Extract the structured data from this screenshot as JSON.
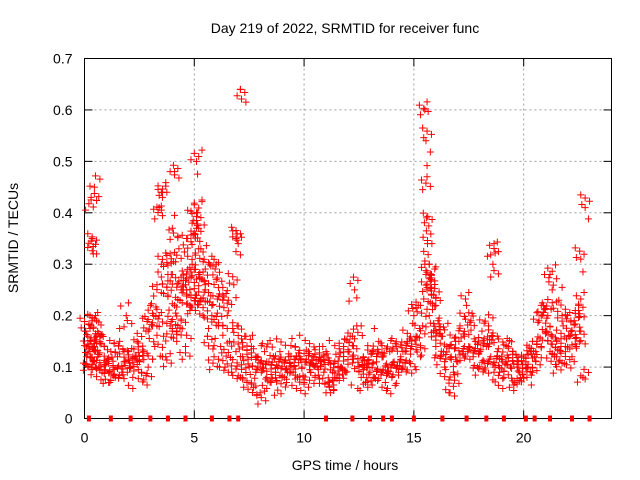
{
  "chart_data": {
    "type": "scatter",
    "title": "Day 219 of 2022, SRMTID for receiver func",
    "xlabel": "GPS time / hours",
    "ylabel": "SRMTID / TECUs",
    "xlim": [
      0,
      24
    ],
    "ylim": [
      0,
      0.7
    ],
    "xticks": [
      0,
      5,
      10,
      15,
      20
    ],
    "xtick_labels": [
      "0",
      "5",
      "10",
      "15",
      "20"
    ],
    "yticks": [
      0,
      0.1,
      0.2,
      0.3,
      0.4,
      0.5,
      0.6,
      0.7
    ],
    "ytick_labels": [
      "0",
      "0.1",
      "0.2",
      "0.3",
      "0.4",
      "0.5",
      "0.6",
      "0.7"
    ],
    "grid": true,
    "marker": "plus",
    "color": "#ff0000",
    "series": [
      {
        "name": "SRMTID",
        "x": [
          0.05,
          0.1,
          0.15,
          0.2,
          0.25,
          0.3,
          0.35,
          0.4,
          0.45,
          0.5,
          0.55,
          0.6,
          0.65,
          0.7,
          0.8,
          0.9,
          1.0,
          1.1,
          1.2,
          1.3,
          1.4,
          1.5,
          1.6,
          1.7,
          1.8,
          1.9,
          2.0,
          2.1,
          2.2,
          2.3,
          2.4,
          2.5,
          2.6,
          2.7,
          2.8,
          2.9,
          3.0,
          3.1,
          3.2,
          3.3,
          3.4,
          3.5,
          3.6,
          3.7,
          3.8,
          3.9,
          4.0,
          4.1,
          4.2,
          4.3,
          4.4,
          4.5,
          4.6,
          4.7,
          4.8,
          4.9,
          5.0,
          5.05,
          5.1,
          5.2,
          5.3,
          5.4,
          5.5,
          5.6,
          5.7,
          5.8,
          5.9,
          6.0,
          6.1,
          6.2,
          6.3,
          6.4,
          6.5,
          6.6,
          6.7,
          6.8,
          6.9,
          7.0,
          7.1,
          7.2,
          7.3,
          7.4,
          7.5,
          7.6,
          7.7,
          7.8,
          7.9,
          8.0,
          8.1,
          8.2,
          8.3,
          8.4,
          8.5,
          8.6,
          8.7,
          8.8,
          8.9,
          9.0,
          9.1,
          9.2,
          9.3,
          9.4,
          9.5,
          9.6,
          9.7,
          9.8,
          9.9,
          10.0,
          10.1,
          10.2,
          10.3,
          10.4,
          10.5,
          10.6,
          10.7,
          10.8,
          10.9,
          11.0,
          11.1,
          11.2,
          11.3,
          11.4,
          11.5,
          11.6,
          11.7,
          11.8,
          11.9,
          12.0,
          12.1,
          12.2,
          12.3,
          12.4,
          12.5,
          12.6,
          12.7,
          12.8,
          12.9,
          13.0,
          13.1,
          13.2,
          13.3,
          13.4,
          13.5,
          13.6,
          13.7,
          13.8,
          13.9,
          14.0,
          14.1,
          14.2,
          14.3,
          14.4,
          14.5,
          14.6,
          14.7,
          14.8,
          14.9,
          15.0,
          15.1,
          15.2,
          15.3,
          15.4,
          15.5,
          15.6,
          15.7,
          15.8,
          15.9,
          16.0,
          16.1,
          16.2,
          16.3,
          16.4,
          16.5,
          16.6,
          16.7,
          16.8,
          16.9,
          17.0,
          17.1,
          17.2,
          17.3,
          17.4,
          17.5,
          17.6,
          17.7,
          17.8,
          17.9,
          18.0,
          18.1,
          18.2,
          18.3,
          18.4,
          18.5,
          18.6,
          18.7,
          18.8,
          18.9,
          19.0,
          19.1,
          19.2,
          19.3,
          19.4,
          19.5,
          19.6,
          19.7,
          19.8,
          19.9,
          20.0,
          20.1,
          20.2,
          20.3,
          20.4,
          20.5,
          20.6,
          20.7,
          20.8,
          20.9,
          21.0,
          21.1,
          21.2,
          21.3,
          21.4,
          21.5,
          21.6,
          21.7,
          21.8,
          21.9,
          22.0,
          22.1,
          22.2,
          22.3,
          22.4,
          22.5,
          22.6,
          22.7,
          22.8,
          0.3,
          0.35,
          0.4,
          0.45,
          3.4,
          3.5,
          3.55,
          4.0,
          4.1,
          5.1,
          5.15,
          5.2,
          6.9,
          7.0,
          7.1,
          15.5,
          15.55,
          15.6,
          15.58,
          15.62,
          18.6,
          18.65,
          21.2,
          21.3,
          21.6,
          22.5,
          22.6,
          4.6,
          4.7,
          4.8,
          4.9,
          5.0,
          5.3,
          5.5,
          5.8,
          6.0,
          6.3,
          3.8,
          3.9,
          4.2,
          4.4,
          15.8,
          15.9,
          16.0,
          15.7
        ],
        "y": [
          0.17,
          0.12,
          0.16,
          0.1,
          0.13,
          0.15,
          0.19,
          0.11,
          0.14,
          0.2,
          0.16,
          0.12,
          0.1,
          0.15,
          0.09,
          0.14,
          0.11,
          0.07,
          0.13,
          0.1,
          0.08,
          0.12,
          0.15,
          0.09,
          0.11,
          0.2,
          0.13,
          0.1,
          0.08,
          0.12,
          0.15,
          0.11,
          0.09,
          0.13,
          0.17,
          0.1,
          0.22,
          0.18,
          0.14,
          0.26,
          0.2,
          0.3,
          0.16,
          0.12,
          0.24,
          0.18,
          0.28,
          0.22,
          0.15,
          0.33,
          0.19,
          0.25,
          0.14,
          0.29,
          0.21,
          0.3,
          0.36,
          0.24,
          0.4,
          0.28,
          0.33,
          0.2,
          0.25,
          0.16,
          0.3,
          0.22,
          0.12,
          0.27,
          0.18,
          0.14,
          0.24,
          0.1,
          0.2,
          0.15,
          0.09,
          0.26,
          0.13,
          0.18,
          0.08,
          0.12,
          0.16,
          0.07,
          0.1,
          0.14,
          0.06,
          0.09,
          0.12,
          0.05,
          0.1,
          0.13,
          0.08,
          0.11,
          0.07,
          0.12,
          0.09,
          0.1,
          0.13,
          0.08,
          0.11,
          0.07,
          0.12,
          0.1,
          0.09,
          0.14,
          0.08,
          0.12,
          0.1,
          0.07,
          0.11,
          0.13,
          0.09,
          0.12,
          0.08,
          0.1,
          0.14,
          0.11,
          0.09,
          0.13,
          0.07,
          0.05,
          0.09,
          0.11,
          0.08,
          0.12,
          0.1,
          0.14,
          0.09,
          0.13,
          0.16,
          0.12,
          0.25,
          0.18,
          0.1,
          0.08,
          0.12,
          0.07,
          0.1,
          0.09,
          0.13,
          0.08,
          0.11,
          0.15,
          0.09,
          0.12,
          0.07,
          0.1,
          0.13,
          0.08,
          0.11,
          0.14,
          0.09,
          0.12,
          0.1,
          0.13,
          0.15,
          0.11,
          0.14,
          0.2,
          0.16,
          0.22,
          0.12,
          0.18,
          0.3,
          0.25,
          0.2,
          0.28,
          0.17,
          0.14,
          0.19,
          0.12,
          0.16,
          0.1,
          0.14,
          0.05,
          0.12,
          0.09,
          0.15,
          0.11,
          0.18,
          0.13,
          0.16,
          0.22,
          0.14,
          0.19,
          0.12,
          0.15,
          0.1,
          0.13,
          0.17,
          0.11,
          0.14,
          0.18,
          0.12,
          0.16,
          0.1,
          0.13,
          0.09,
          0.12,
          0.08,
          0.11,
          0.14,
          0.1,
          0.13,
          0.07,
          0.1,
          0.09,
          0.12,
          0.08,
          0.11,
          0.1,
          0.13,
          0.09,
          0.12,
          0.15,
          0.19,
          0.14,
          0.22,
          0.17,
          0.2,
          0.13,
          0.16,
          0.12,
          0.15,
          0.11,
          0.14,
          0.18,
          0.13,
          0.2,
          0.16,
          0.12,
          0.19,
          0.14,
          0.22,
          0.17,
          0.08,
          0.41,
          0.43,
          0.35,
          0.32,
          0.45,
          0.41,
          0.44,
          0.43,
          0.37,
          0.48,
          0.5,
          0.4,
          0.37,
          0.35,
          0.34,
          0.64,
          0.6,
          0.54,
          0.47,
          0.39,
          0.34,
          0.3,
          0.34,
          0.28,
          0.25,
          0.23,
          0.21,
          0.31,
          0.26,
          0.35,
          0.22,
          0.38,
          0.29,
          0.23,
          0.26,
          0.2,
          0.3,
          0.23,
          0.28,
          0.32,
          0.17,
          0.25,
          0.27,
          0.24,
          0.22,
          0.3
        ]
      }
    ],
    "bottom_markers_x": [
      0.2,
      1.2,
      2.1,
      3.0,
      3.8,
      4.6,
      5.8,
      6.6,
      7.0,
      11.0,
      12.2,
      13.0,
      13.6,
      14.0,
      15.0,
      16.3,
      17.4,
      18.3,
      19.1,
      20.1,
      20.5,
      21.2,
      22.2,
      23.0
    ],
    "bottom_markers_y": 0
  }
}
